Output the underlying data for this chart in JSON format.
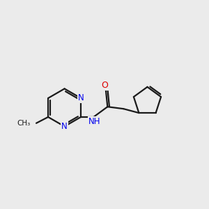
{
  "background_color": "#ebebeb",
  "bond_color": "#1a1a1a",
  "nitrogen_color": "#0000ee",
  "oxygen_color": "#dd0000",
  "line_width": 1.6,
  "figsize": [
    3.0,
    3.0
  ],
  "dpi": 100,
  "xlim": [
    0.0,
    10.0
  ],
  "ylim": [
    2.5,
    8.5
  ]
}
